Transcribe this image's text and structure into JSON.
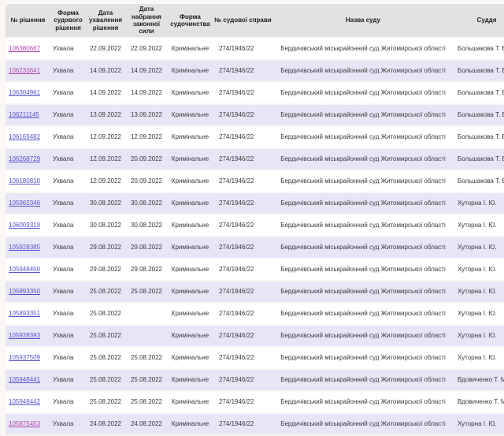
{
  "colors": {
    "link_blue": "#5453ce",
    "link_visited": "#b144b1",
    "row_stripe": "#e7e6f6",
    "header_bg": "#e3e2e2",
    "page_bg": "#fbf7f5"
  },
  "table": {
    "columns": [
      {
        "key": "id",
        "label": "№ рішення"
      },
      {
        "key": "form",
        "label": "Форма судового рішення"
      },
      {
        "key": "date_adopted",
        "label": "Дата ухвалення рішення"
      },
      {
        "key": "date_force",
        "label": "Дата набрання законної сили"
      },
      {
        "key": "proceeding",
        "label": "Форма судочинства"
      },
      {
        "key": "case_no",
        "label": "№ судової справи"
      },
      {
        "key": "court",
        "label": "Назва суду"
      },
      {
        "key": "judge",
        "label": "Суддя"
      }
    ],
    "rows": [
      {
        "id": "106380667",
        "visited": true,
        "form": "Ухвала",
        "date_adopted": "22.09.2022",
        "date_force": "22.09.2022",
        "proceeding": "Кримінальне",
        "case_no": "274/1946/22",
        "court": "Бердичівський міськрайонний суд Житомирської області",
        "judge": "Большакова Т. Б."
      },
      {
        "id": "106233641",
        "visited": true,
        "form": "Ухвала",
        "date_adopted": "14.09.2022",
        "date_force": "14.09.2022",
        "proceeding": "Кримінальне",
        "case_no": "274/1946/22",
        "court": "Бердичівський міськрайонний суд Житомирської області",
        "judge": "Большакова Т. Б."
      },
      {
        "id": "106304961",
        "visited": false,
        "form": "Ухвала",
        "date_adopted": "14.09.2022",
        "date_force": "14.09.2022",
        "proceeding": "Кримінальне",
        "case_no": "274/1946/22",
        "court": "Бердичівський міськрайонний суд Житомирської області",
        "judge": "Большакова Т. Б."
      },
      {
        "id": "106211145",
        "visited": false,
        "form": "Ухвала",
        "date_adopted": "13.09.2022",
        "date_force": "13.09.2022",
        "proceeding": "Кримінальне",
        "case_no": "274/1946/22",
        "court": "Бердичівський міськрайонний суд Житомирської області",
        "judge": "Большакова Т. Б."
      },
      {
        "id": "106169482",
        "visited": false,
        "form": "Ухвала",
        "date_adopted": "12.09.2022",
        "date_force": "12.09.2022",
        "proceeding": "Кримінальне",
        "case_no": "274/1946/22",
        "court": "Бердичівський міськрайонний суд Житомирської області",
        "judge": "Большакова Т. Б."
      },
      {
        "id": "106268729",
        "visited": false,
        "form": "Ухвала",
        "date_adopted": "12.09.2022",
        "date_force": "20.09.2022",
        "proceeding": "Кримінальне",
        "case_no": "274/1946/22",
        "court": "Бердичівський міськрайонний суд Житомирської області",
        "judge": "Большакова Т. Б."
      },
      {
        "id": "106180810",
        "visited": false,
        "form": "Ухвала",
        "date_adopted": "12.09.2022",
        "date_force": "20.09.2022",
        "proceeding": "Кримінальне",
        "case_no": "274/1946/22",
        "court": "Бердичівський міськрайонний суд Житомирської області",
        "judge": "Большакова Т. Б."
      },
      {
        "id": "105962346",
        "visited": false,
        "form": "Ухвала",
        "date_adopted": "30.08.2022",
        "date_force": "30.08.2022",
        "proceeding": "Кримінальне",
        "case_no": "274/1946/22",
        "court": "Бердичівський міськрайонний суд Житомирської області",
        "judge": "Хуторна І. Ю."
      },
      {
        "id": "106009319",
        "visited": false,
        "form": "Ухвала",
        "date_adopted": "30.08.2022",
        "date_force": "30.08.2022",
        "proceeding": "Кримінальне",
        "case_no": "274/1946/22",
        "court": "Бердичівський міськрайонний суд Житомирської області",
        "judge": "Хуторна І. Ю."
      },
      {
        "id": "105928385",
        "visited": false,
        "form": "Ухвала",
        "date_adopted": "29.08.2022",
        "date_force": "29.08.2022",
        "proceeding": "Кримінальне",
        "case_no": "274/1946/22",
        "court": "Бердичівський міськрайонний суд Житомирської області",
        "judge": "Хуторна І. Ю."
      },
      {
        "id": "105948450",
        "visited": false,
        "form": "Ухвала",
        "date_adopted": "29.08.2022",
        "date_force": "29.08.2022",
        "proceeding": "Кримінальне",
        "case_no": "274/1946/22",
        "court": "Бердичівський міськрайонний суд Житомирської області",
        "judge": "Хуторна І. Ю."
      },
      {
        "id": "105893350",
        "visited": false,
        "form": "Ухвала",
        "date_adopted": "25.08.2022",
        "date_force": "25.08.2022",
        "proceeding": "Кримінальне",
        "case_no": "274/1946/22",
        "court": "Бердичівський міськрайонний суд Житомирської області",
        "judge": "Хуторна І. Ю."
      },
      {
        "id": "105893351",
        "visited": false,
        "form": "Ухвала",
        "date_adopted": "25.08.2022",
        "date_force": "",
        "proceeding": "Кримінальне",
        "case_no": "274/1946/22",
        "court": "Бердичівський міськрайонний суд Житомирської області",
        "judge": "Хуторна І. Ю."
      },
      {
        "id": "105928393",
        "visited": false,
        "form": "Ухвала",
        "date_adopted": "25.08.2022",
        "date_force": "",
        "proceeding": "Кримінальне",
        "case_no": "274/1946/22",
        "court": "Бердичівський міськрайонний суд Житомирської області",
        "judge": "Хуторна І. Ю."
      },
      {
        "id": "105937509",
        "visited": false,
        "form": "Ухвала",
        "date_adopted": "25.08.2022",
        "date_force": "25.08.2022",
        "proceeding": "Кримінальне",
        "case_no": "274/1946/22",
        "court": "Бердичівський міськрайонний суд Житомирської області",
        "judge": "Хуторна І. Ю."
      },
      {
        "id": "105948441",
        "visited": false,
        "form": "Ухвала",
        "date_adopted": "25.08.2022",
        "date_force": "25.08.2022",
        "proceeding": "Кримінальне",
        "case_no": "274/1946/22",
        "court": "Бердичівський міськрайонний суд Житомирської області",
        "judge": "Вдовиченко Т. М."
      },
      {
        "id": "105948442",
        "visited": false,
        "form": "Ухвала",
        "date_adopted": "25.08.2022",
        "date_force": "25.08.2022",
        "proceeding": "Кримінальне",
        "case_no": "274/1946/22",
        "court": "Бердичівський міськрайонний суд Житомирської області",
        "judge": "Вдовиченко Т. М."
      },
      {
        "id": "105875453",
        "visited": true,
        "form": "Ухвала",
        "date_adopted": "24.08.2022",
        "date_force": "24.08.2022",
        "proceeding": "Кримінальне",
        "case_no": "274/1946/22",
        "court": "Бердичівський міськрайонний суд Житомирської області",
        "judge": "Хуторна І. Ю."
      }
    ]
  }
}
